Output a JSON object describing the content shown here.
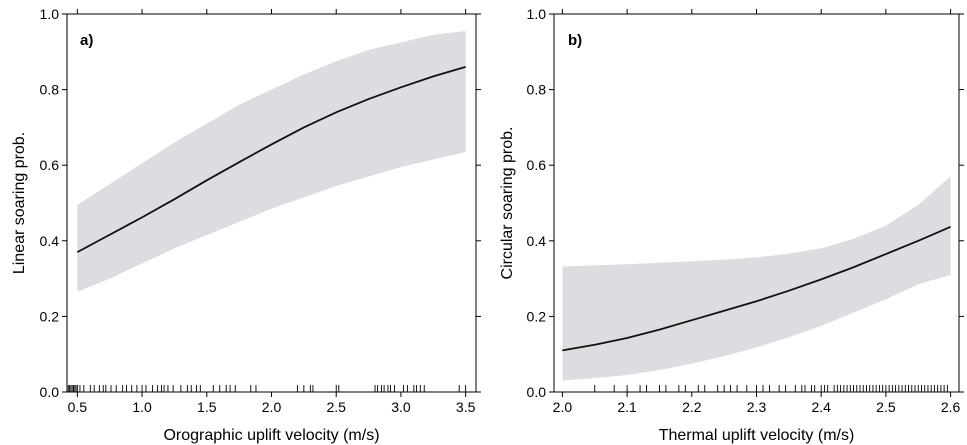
{
  "chart_data": [
    {
      "type": "line",
      "panel_label": "a)",
      "xlabel": "Orographic uplift velocity (m/s)",
      "ylabel": "Linear soaring prob.",
      "xlim": [
        0.42,
        3.58
      ],
      "ylim": [
        0.0,
        1.0
      ],
      "xticks": [
        0.5,
        1.0,
        1.5,
        2.0,
        2.5,
        3.0,
        3.5
      ],
      "xtick_labels": [
        "0.5",
        "1.0",
        "1.5",
        "2.0",
        "2.5",
        "3.0",
        "3.5"
      ],
      "yticks": [
        0.0,
        0.2,
        0.4,
        0.6,
        0.8,
        1.0
      ],
      "ytick_labels": [
        "0.0",
        "0.2",
        "0.4",
        "0.6",
        "0.8",
        "1.0"
      ],
      "grid": false,
      "line_color": "#111111",
      "band_color": "#dcdde0",
      "x": [
        0.5,
        0.75,
        1.0,
        1.25,
        1.5,
        1.75,
        2.0,
        2.25,
        2.5,
        2.75,
        3.0,
        3.25,
        3.5
      ],
      "y": [
        0.37,
        0.416,
        0.462,
        0.51,
        0.56,
        0.608,
        0.655,
        0.7,
        0.74,
        0.775,
        0.806,
        0.835,
        0.86
      ],
      "lower": [
        0.265,
        0.3,
        0.34,
        0.38,
        0.415,
        0.45,
        0.485,
        0.515,
        0.545,
        0.57,
        0.595,
        0.615,
        0.635
      ],
      "upper": [
        0.495,
        0.55,
        0.605,
        0.66,
        0.71,
        0.76,
        0.8,
        0.84,
        0.875,
        0.905,
        0.925,
        0.945,
        0.955
      ],
      "rug": [
        0.43,
        0.44,
        0.45,
        0.46,
        0.47,
        0.48,
        0.49,
        0.5,
        0.52,
        0.55,
        0.6,
        0.63,
        0.67,
        0.7,
        0.72,
        0.76,
        0.8,
        0.85,
        0.88,
        0.92,
        0.96,
        1.0,
        1.03,
        1.08,
        1.12,
        1.15,
        1.17,
        1.2,
        1.24,
        1.3,
        1.35,
        1.38,
        1.42,
        1.45,
        1.55,
        1.6,
        1.65,
        1.68,
        1.72,
        1.84,
        1.88,
        2.2,
        2.25,
        2.3,
        2.32,
        2.5,
        2.52,
        2.8,
        2.82,
        2.85,
        2.87,
        2.9,
        2.92,
        2.95,
        3.02,
        3.05,
        3.1,
        3.12,
        3.15,
        3.18,
        3.45,
        3.5
      ]
    },
    {
      "type": "line",
      "panel_label": "b)",
      "xlabel": "Thermal uplift velocity (m/s)",
      "ylabel": "Circular soaring prob.",
      "xlim": [
        1.987,
        2.613
      ],
      "ylim": [
        0.0,
        1.0
      ],
      "xticks": [
        2.0,
        2.1,
        2.2,
        2.3,
        2.4,
        2.5,
        2.6
      ],
      "xtick_labels": [
        "2.0",
        "2.1",
        "2.2",
        "2.3",
        "2.4",
        "2.5",
        "2.6"
      ],
      "yticks": [
        0.0,
        0.2,
        0.4,
        0.6,
        0.8,
        1.0
      ],
      "ytick_labels": [
        "0.0",
        "0.2",
        "0.4",
        "0.6",
        "0.8",
        "1.0"
      ],
      "grid": false,
      "line_color": "#111111",
      "band_color": "#dcdde0",
      "x": [
        2.0,
        2.05,
        2.1,
        2.15,
        2.2,
        2.25,
        2.3,
        2.35,
        2.4,
        2.45,
        2.5,
        2.55,
        2.6
      ],
      "y": [
        0.11,
        0.125,
        0.143,
        0.165,
        0.19,
        0.215,
        0.24,
        0.268,
        0.298,
        0.33,
        0.365,
        0.4,
        0.437
      ],
      "lower": [
        0.03,
        0.037,
        0.045,
        0.058,
        0.075,
        0.095,
        0.118,
        0.145,
        0.175,
        0.21,
        0.245,
        0.285,
        0.31
      ],
      "upper": [
        0.332,
        0.335,
        0.338,
        0.342,
        0.346,
        0.35,
        0.356,
        0.366,
        0.38,
        0.405,
        0.44,
        0.495,
        0.57
      ],
      "rug": [
        2.05,
        2.08,
        2.1,
        2.12,
        2.13,
        2.15,
        2.16,
        2.18,
        2.19,
        2.21,
        2.22,
        2.24,
        2.25,
        2.26,
        2.27,
        2.285,
        2.3,
        2.31,
        2.32,
        2.335,
        2.345,
        2.36,
        2.37,
        2.375,
        2.385,
        2.39,
        2.4,
        2.405,
        2.41,
        2.42,
        2.425,
        2.43,
        2.435,
        2.44,
        2.445,
        2.45,
        2.455,
        2.46,
        2.465,
        2.47,
        2.475,
        2.48,
        2.485,
        2.49,
        2.495,
        2.5,
        2.505,
        2.51,
        2.515,
        2.52,
        2.525,
        2.53,
        2.535,
        2.54,
        2.545,
        2.55,
        2.555,
        2.56,
        2.565,
        2.57,
        2.575,
        2.58,
        2.585,
        2.59,
        2.595
      ]
    }
  ]
}
